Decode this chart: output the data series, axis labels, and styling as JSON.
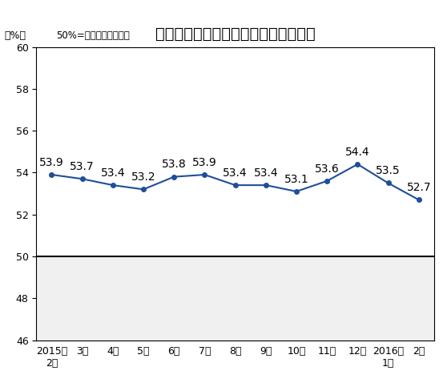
{
  "title": "非制造业商务活动指数（经季节调整）",
  "ylabel": "（%）",
  "subtitle": "50%=与上月比较无变化",
  "x_labels_line1": [
    "2015年",
    "3月",
    "4月",
    "5月",
    "6月",
    "7月",
    "8月",
    "9月",
    "10月",
    "11月",
    "12月",
    "2016年",
    "2月"
  ],
  "x_labels_line2": [
    "2月",
    "",
    "",
    "",
    "",
    "",
    "",
    "",
    "",
    "",
    "",
    "1月",
    ""
  ],
  "values": [
    53.9,
    53.7,
    53.4,
    53.2,
    53.8,
    53.9,
    53.4,
    53.4,
    53.1,
    53.6,
    54.4,
    53.5,
    52.7
  ],
  "ylim": [
    46,
    60
  ],
  "yticks": [
    46,
    48,
    50,
    52,
    54,
    56,
    58,
    60
  ],
  "line_color": "#1F4E9B",
  "marker_color": "#1F4E9B",
  "bg_color": "#FFFFFF",
  "border_color": "#000000",
  "hline_y": 50,
  "hline_color": "#000000",
  "shade_color": "#F0F0F0",
  "title_fontsize": 14,
  "label_fontsize": 9,
  "tick_fontsize": 9,
  "annotation_fontsize": 10
}
